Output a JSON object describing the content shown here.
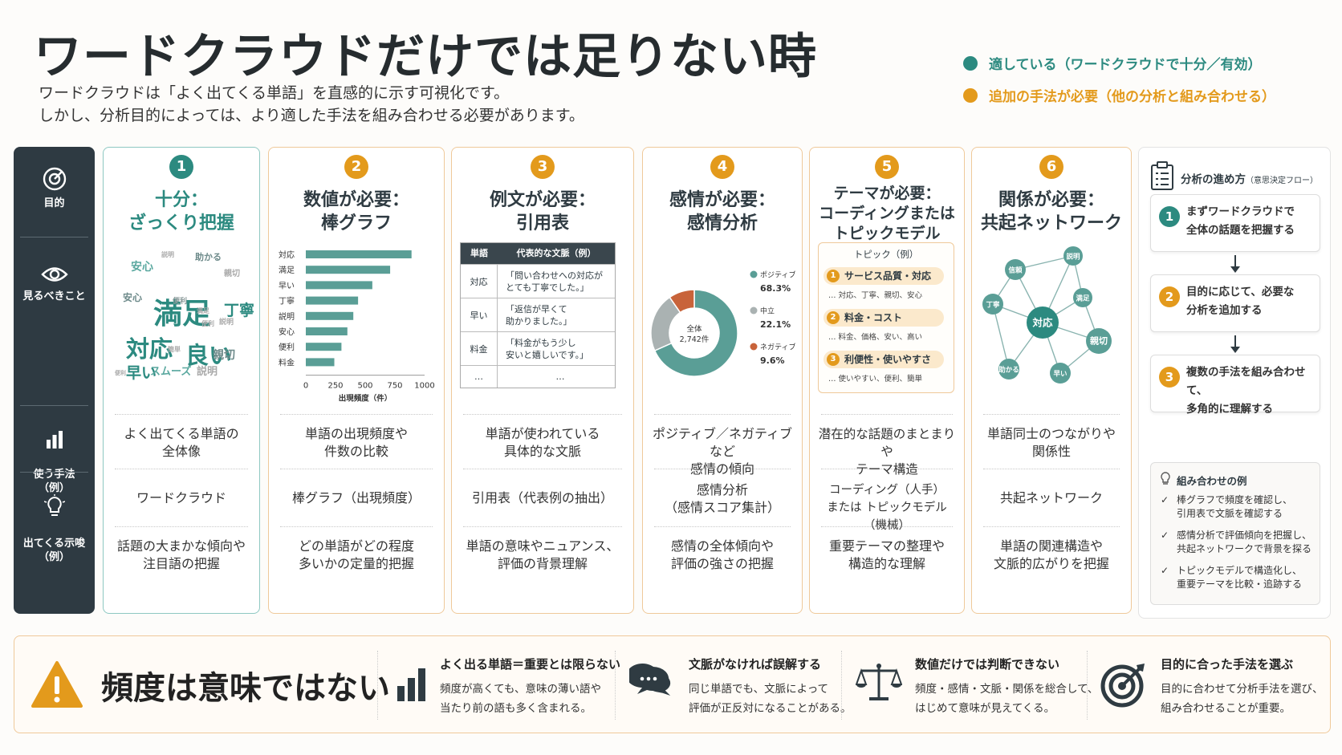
{
  "title": "ワードクラウドだけでは足りない時",
  "subtitle": [
    "ワードクラウドは「よく出てくる単語」を直感的に示す可視化です。",
    "しかし、分析目的によっては、より適した手法を組み合わせる必要があります。"
  ],
  "legend": [
    {
      "label": "適している（ワードクラウドで十分／有効）",
      "color": "#2c8a80"
    },
    {
      "label": "追加の手法が必要（他の分析と組み合わせる）",
      "color": "#e39a1c"
    }
  ],
  "sidebar": [
    {
      "label": "目的",
      "icon": "target-icon"
    },
    {
      "label": "見るべきこと",
      "icon": "eye-icon"
    },
    {
      "label": "使う手法\n（例）",
      "icon": "bar-chart-icon"
    },
    {
      "label": "出てくる示唆\n（例）",
      "icon": "lightbulb-icon"
    }
  ],
  "cards": [
    {
      "num": "1",
      "title": "十分：\nざっくり把握",
      "color": "#2c8a80",
      "look": "よく出てくる単語の\n全体像",
      "method": "ワードクラウド",
      "insight": "話題の大まかな傾向や\n注目語の把握"
    },
    {
      "num": "2",
      "title": "数値が必要：\n棒グラフ",
      "color": "#e39a1c",
      "look": "単語の出現頻度や\n件数の比較",
      "method": "棒グラフ（出現頻度）",
      "insight": "どの単語がどの程度\n多いかの定量的把握"
    },
    {
      "num": "3",
      "title": "例文が必要：\n引用表",
      "color": "#e39a1c",
      "look": "単語が使われている\n具体的な文脈",
      "method": "引用表（代表例の抽出）",
      "insight": "単語の意味やニュアンス、\n評価の背景理解"
    },
    {
      "num": "4",
      "title": "感情が必要：\n感情分析",
      "color": "#e39a1c",
      "look": "ポジティブ／ネガティブなど\n感情の傾向",
      "method": "感情分析\n（感情スコア集計）",
      "insight": "感情の全体傾向や\n評価の強さの把握"
    },
    {
      "num": "5",
      "title": "テーマが必要：\nコーディングまたは\nトピックモデル",
      "color": "#e39a1c",
      "look": "潜在的な話題のまとまりや\nテーマ構造",
      "method": "コーディング（人手）\nまたは トピックモデル（機械）",
      "insight": "重要テーマの整理や\n構造的な理解"
    },
    {
      "num": "6",
      "title": "関係が必要：\n共起ネットワーク",
      "color": "#e39a1c",
      "look": "単語同士のつながりや\n関係性",
      "method": "共起ネットワーク",
      "insight": "単語の関連構造や\n文脈的広がりを把握"
    }
  ],
  "wordcloud": [
    {
      "w": "満足",
      "c": "#2c8a80",
      "s": 36
    },
    {
      "w": "対応",
      "c": "#2c8a80",
      "s": 29
    },
    {
      "w": "良い",
      "c": "#2c8a80",
      "s": 29
    },
    {
      "w": "丁寧",
      "c": "#2c8a80",
      "s": 19
    },
    {
      "w": "早い",
      "c": "#2c8a80",
      "s": 19
    },
    {
      "w": "安心",
      "c": "#5aa89f",
      "s": 14
    },
    {
      "w": "助かる",
      "c": "#6d8a8a",
      "s": 11
    },
    {
      "w": "親切",
      "c": "#6d8a8a",
      "s": 14
    },
    {
      "w": "スムーズ",
      "c": "#5aa89f",
      "s": 13
    },
    {
      "w": "便利",
      "c": "#8a9a9a",
      "s": 9
    },
    {
      "w": "安心",
      "c": "#6d8a8a",
      "s": 12
    },
    {
      "w": "説明",
      "c": "#aaaaaa",
      "s": 8
    },
    {
      "w": "親切",
      "c": "#aaaaaa",
      "s": 10
    },
    {
      "w": "簡単",
      "c": "#aaaaaa",
      "s": 8
    },
    {
      "w": "説明",
      "c": "#aaaaaa",
      "s": 9
    },
    {
      "w": "便利",
      "c": "#aaaaaa",
      "s": 8
    },
    {
      "w": "満足",
      "c": "#aaaaaa",
      "s": 8
    },
    {
      "w": "説明",
      "c": "#aaaaaa",
      "s": 13
    },
    {
      "w": "便利",
      "c": "#aaaaaa",
      "s": 7
    }
  ],
  "chart_data": [
    {
      "type": "bar",
      "categories": [
        "対応",
        "満足",
        "早い",
        "丁寧",
        "説明",
        "安心",
        "便利",
        "料金"
      ],
      "values": [
        890,
        710,
        560,
        440,
        400,
        350,
        300,
        240
      ],
      "xlim": [
        0,
        1000
      ],
      "xticks": [
        "0",
        "250",
        "500",
        "750",
        "1000"
      ],
      "xlabel": "出現頻度（件）",
      "color": "#5a9e96"
    },
    {
      "type": "pie",
      "center_label": "全体\n2,742件",
      "slices": [
        {
          "name": "ポジティブ",
          "value": 68.3,
          "label": "68.3%",
          "color": "#5a9e96"
        },
        {
          "name": "中立",
          "value": 22.1,
          "label": "22.1%",
          "color": "#aab2b2"
        },
        {
          "name": "ネガティブ",
          "value": 9.6,
          "label": "9.6%",
          "color": "#c8633a"
        }
      ]
    }
  ],
  "quote_table": {
    "headers": [
      "単語",
      "代表的な文脈（例）"
    ],
    "rows": [
      [
        "対応",
        "「問い合わせへの対応が\nとても丁寧でした。」"
      ],
      [
        "早い",
        "「返信が早くて\n助かりました。」"
      ],
      [
        "料金",
        "「料金がもう少し\n安いと嬉しいです。」"
      ],
      [
        "…",
        "…"
      ]
    ]
  },
  "topics": {
    "header": "トピック（例）",
    "items": [
      {
        "n": "1",
        "label": "サービス品質・対応",
        "words": "… 対応、丁寧、親切、安心"
      },
      {
        "n": "2",
        "label": "料金・コスト",
        "words": "… 料金、価格、安い、高い"
      },
      {
        "n": "3",
        "label": "利便性・使いやすさ",
        "words": "… 使いやすい、便利、簡単"
      }
    ]
  },
  "network": {
    "center": "対応",
    "nodes": [
      "信頼",
      "説明",
      "満足",
      "助かる",
      "早い",
      "親切",
      "丁寧"
    ]
  },
  "flow": {
    "title": "分析の進め方",
    "title_small": "（意思決定フロー）",
    "steps": [
      {
        "n": "1",
        "text": "まずワードクラウドで\n全体の話題を把握する",
        "color": "#2c8a80"
      },
      {
        "n": "2",
        "text": "目的に応じて、必要な\n分析を追加する",
        "color": "#e39a1c"
      },
      {
        "n": "3",
        "text": "複数の手法を組み合わせて、\n多角的に理解する",
        "color": "#e39a1c"
      }
    ],
    "combo_title": "組み合わせの例",
    "combo": [
      "棒グラフで頻度を確認し、\n引用表で文脈を確認する",
      "感情分析で評価傾向を把握し、\n共起ネットワークで背景を探る",
      "トピックモデルで構造化し、\n重要テーマを比較・追跡する"
    ]
  },
  "bottom": {
    "headline": "頻度は意味ではない",
    "items": [
      {
        "title": "よく出る単語＝重要とは限らない",
        "text": "頻度が高くても、意味の薄い語や\n当たり前の語も多く含まれる。",
        "icon": "bar-chart-icon"
      },
      {
        "title": "文脈がなければ誤解する",
        "text": "同じ単語でも、文脈によって\n評価が正反対になることがある。",
        "icon": "chat-bubbles-icon"
      },
      {
        "title": "数値だけでは判断できない",
        "text": "頻度・感情・文脈・関係を総合して、\nはじめて意味が見えてくる。",
        "icon": "scales-icon"
      },
      {
        "title": "目的に合った手法を選ぶ",
        "text": "目的に合わせて分析手法を選び、\n組み合わせることが重要。",
        "icon": "target-icon"
      }
    ]
  }
}
